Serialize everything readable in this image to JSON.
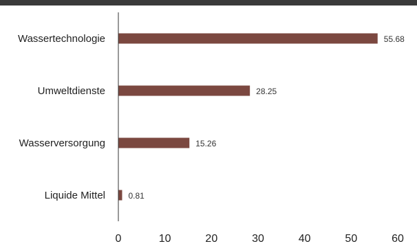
{
  "chart_data": {
    "type": "bar",
    "orientation": "horizontal",
    "categories": [
      "Wassertechnologie",
      "Umweltdienste",
      "Wasserversorgung",
      "Liquide Mittel"
    ],
    "values": [
      55.68,
      28.25,
      15.26,
      0.81
    ],
    "value_labels": [
      "55.68",
      "28.25",
      "15.26",
      "0.81"
    ],
    "xlim": [
      0,
      60
    ],
    "xticks": [
      0,
      10,
      20,
      30,
      40,
      50,
      60
    ],
    "bar_color": "#7b4840",
    "grid": false,
    "legend": "none"
  }
}
